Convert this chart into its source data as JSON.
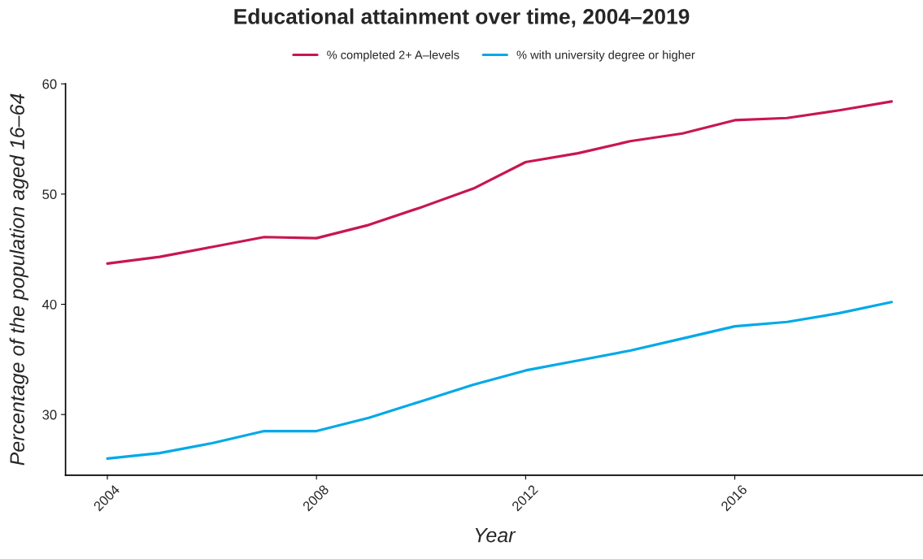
{
  "chart_data": {
    "type": "line",
    "title": "Educational attainment over time, 2004–2019",
    "xlabel": "Year",
    "ylabel": "Percentage of the population aged 16–64",
    "x": [
      2004,
      2005,
      2006,
      2007,
      2008,
      2009,
      2010,
      2011,
      2012,
      2013,
      2014,
      2015,
      2016,
      2017,
      2018,
      2019
    ],
    "series": [
      {
        "name": "% completed 2+ A–levels",
        "color": "#c8174f",
        "values": [
          43.7,
          44.3,
          45.2,
          46.1,
          46.0,
          47.2,
          48.8,
          50.5,
          52.9,
          53.7,
          54.8,
          55.5,
          56.7,
          56.9,
          57.6,
          58.4
        ]
      },
      {
        "name": "% with university degree or higher",
        "color": "#00a9e8",
        "values": [
          26.0,
          26.5,
          27.4,
          28.5,
          28.5,
          29.7,
          31.2,
          32.7,
          34.0,
          34.9,
          35.8,
          36.9,
          38.0,
          38.4,
          39.2,
          40.2
        ]
      }
    ],
    "xlim": [
      2003.2,
      2019.6
    ],
    "xticks": [
      2004,
      2008,
      2012,
      2016
    ],
    "ylim": [
      24.5,
      60
    ],
    "yticks": [
      30,
      40,
      50,
      60
    ],
    "grid": false,
    "legend": "top",
    "marker": "none",
    "line_style": "solid"
  }
}
